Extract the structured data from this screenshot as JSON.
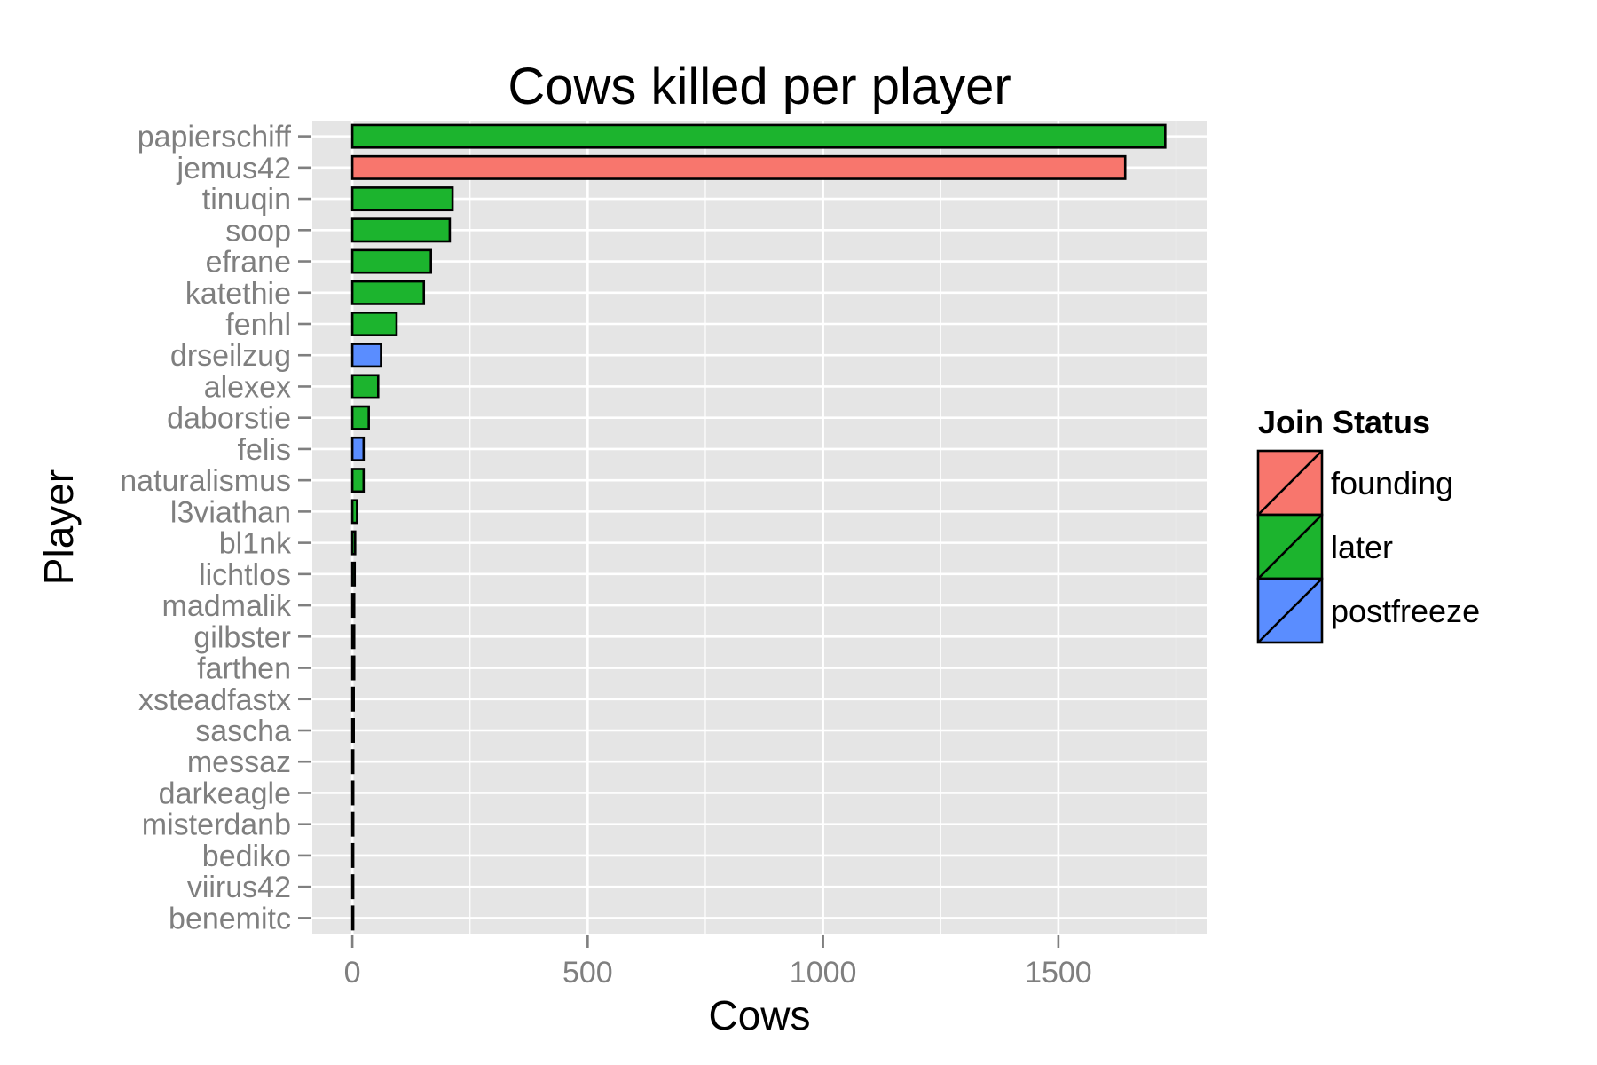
{
  "chart_data": {
    "type": "bar",
    "orientation": "horizontal",
    "title": "Cows killed per player",
    "xlabel": "Cows",
    "ylabel": "Player",
    "xlim": [
      -85,
      1815
    ],
    "xticks": [
      0,
      500,
      1000,
      1500
    ],
    "xtick_labels": [
      "0",
      "500",
      "1000",
      "1500"
    ],
    "grid": true,
    "categories": [
      "papierschiff",
      "jemus42",
      "tinuqin",
      "soop",
      "efrane",
      "katethie",
      "fenhl",
      "drseilzug",
      "alexex",
      "daborstie",
      "felis",
      "naturalismus",
      "l3viathan",
      "bl1nk",
      "lichtlos",
      "madmalik",
      "gilbster",
      "farthen",
      "xsteadfastx",
      "sascha",
      "messaz",
      "darkeagle",
      "misterdanb",
      "bediko",
      "viirus42",
      "benemitc"
    ],
    "values": [
      1727,
      1642,
      213,
      207,
      167,
      152,
      94,
      61,
      55,
      35,
      24,
      24,
      10,
      6,
      5,
      4,
      4,
      4,
      3,
      3,
      2,
      2,
      2,
      1,
      1,
      1
    ],
    "status": [
      "later",
      "founding",
      "later",
      "later",
      "later",
      "later",
      "later",
      "postfreeze",
      "later",
      "later",
      "postfreeze",
      "later",
      "later",
      "later",
      "later",
      "later",
      "later",
      "later",
      "later",
      "later",
      "later",
      "later",
      "later",
      "later",
      "later",
      "later"
    ],
    "legend": {
      "title": "Join Status",
      "position": "right",
      "entries": [
        {
          "key": "founding",
          "label": "founding",
          "color": "#F8766D"
        },
        {
          "key": "later",
          "label": "later",
          "color": "#1CB42E"
        },
        {
          "key": "postfreeze",
          "label": "postfreeze",
          "color": "#5A8DFF"
        }
      ]
    },
    "panel_background": "#E5E5E5",
    "gridline_color": "#FFFFFF",
    "bar_outline_color": "#000000"
  }
}
